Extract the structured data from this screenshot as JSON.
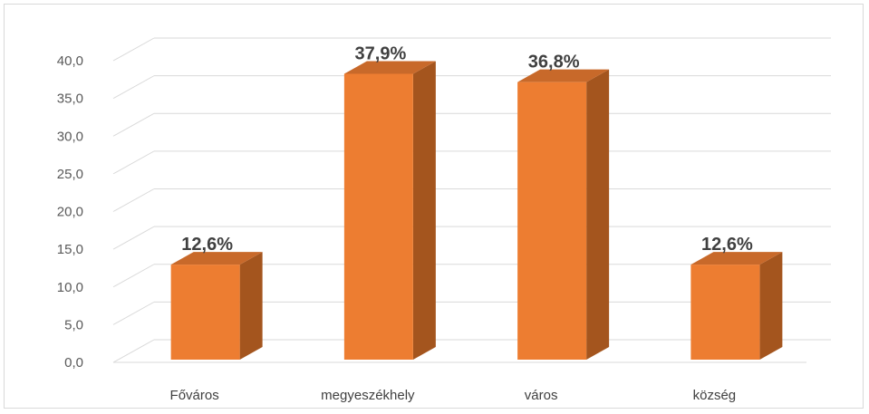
{
  "chart_data": {
    "type": "bar",
    "title": "",
    "xlabel": "",
    "ylabel": "",
    "categories": [
      "Főváros",
      "megyeszékhely",
      "város",
      "község"
    ],
    "values": [
      12.6,
      37.9,
      36.8,
      12.6
    ],
    "data_labels": [
      "12,6%",
      "37,9%",
      "36,8%",
      "12,6%"
    ],
    "yticks": [
      "0,0",
      "5,0",
      "10,0",
      "15,0",
      "20,0",
      "25,0",
      "30,0",
      "35,0",
      "40,0"
    ],
    "ylim": [
      0,
      40
    ],
    "grid": true,
    "legend": "none",
    "style": "3d-column",
    "colors": {
      "bar_front": "#ED7D31",
      "bar_side": "#A4551E",
      "bar_top": "#C8692A",
      "grid": "#d9d9d9"
    }
  }
}
